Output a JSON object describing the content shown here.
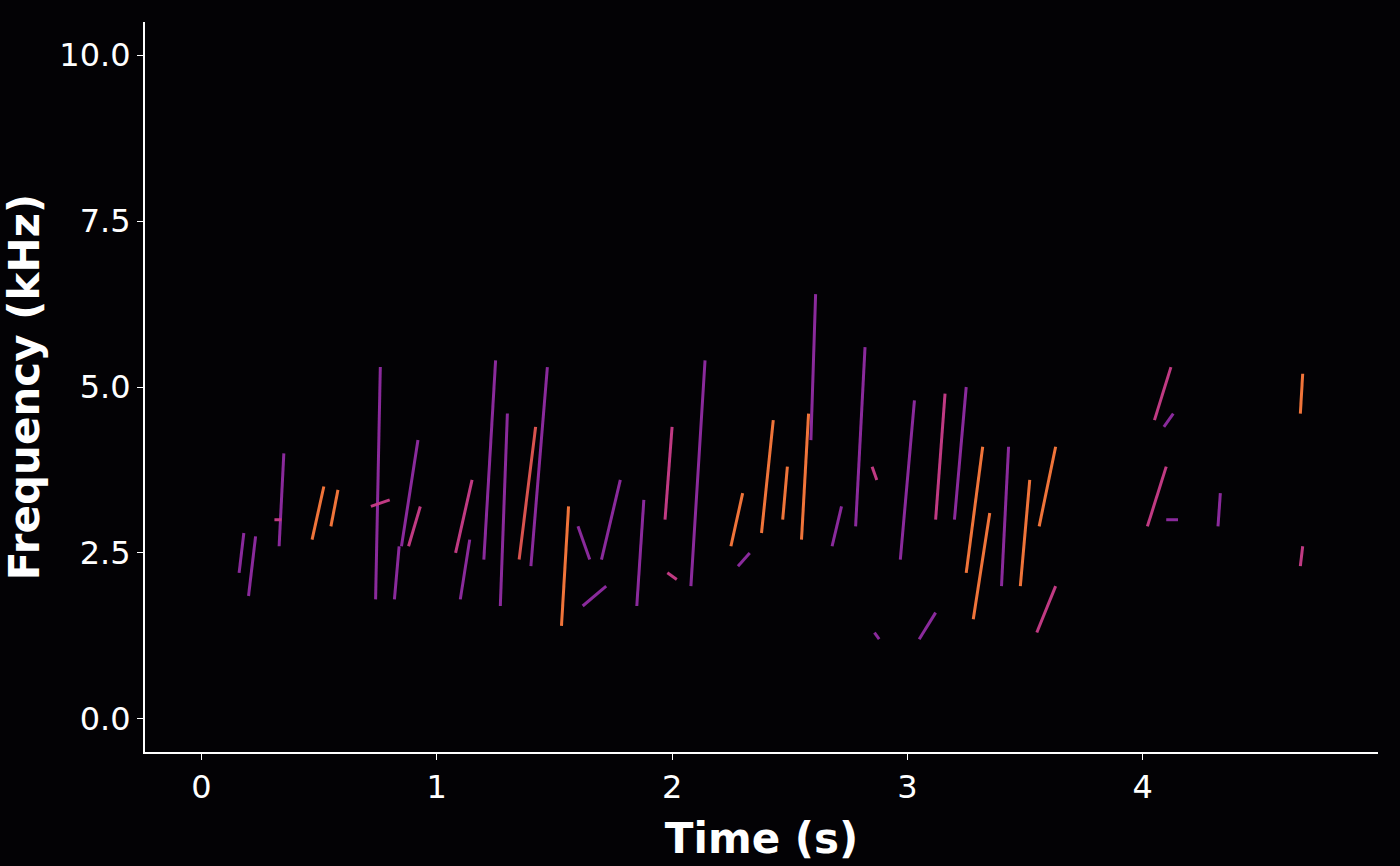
{
  "chart_data": {
    "type": "line",
    "x_label": "Time (s)",
    "y_label": "Frequency (kHz)",
    "xlim": [
      -0.24,
      5.0
    ],
    "xticks": [
      0,
      1,
      2,
      3,
      4
    ],
    "ylim": [
      -0.5,
      10.5
    ],
    "yticks": [
      {
        "value": 0,
        "label": "0.0"
      },
      {
        "value": 2.5,
        "label": "2.5"
      },
      {
        "value": 5,
        "label": "5.0"
      },
      {
        "value": 7.5,
        "label": "7.5"
      },
      {
        "value": 10,
        "label": "10.0"
      }
    ],
    "grid": false,
    "series": [
      {
        "color": "#8a2a9c",
        "x": [
          0.16,
          0.18
        ],
        "values": [
          2.2,
          2.8
        ]
      },
      {
        "color": "#8a2a9c",
        "x": [
          0.2,
          0.23
        ],
        "values": [
          1.85,
          2.75
        ]
      },
      {
        "color": "#8a2a9c",
        "x": [
          0.33,
          0.35
        ],
        "values": [
          2.6,
          4.0
        ]
      },
      {
        "color": "#c03a83",
        "x": [
          0.31,
          0.34
        ],
        "values": [
          3.0,
          3.0
        ]
      },
      {
        "color": "#f0743a",
        "x": [
          0.47,
          0.52
        ],
        "values": [
          2.7,
          3.5
        ]
      },
      {
        "color": "#f0743a",
        "x": [
          0.55,
          0.58
        ],
        "values": [
          2.9,
          3.45
        ]
      },
      {
        "color": "#8a2a9c",
        "x": [
          0.74,
          0.76
        ],
        "values": [
          1.8,
          5.3
        ]
      },
      {
        "color": "#c03a83",
        "x": [
          0.72,
          0.8
        ],
        "values": [
          3.2,
          3.3
        ]
      },
      {
        "color": "#8a2a9c",
        "x": [
          0.85,
          0.92
        ],
        "values": [
          2.6,
          4.2
        ]
      },
      {
        "color": "#c03a83",
        "x": [
          0.88,
          0.93
        ],
        "values": [
          2.6,
          3.2
        ]
      },
      {
        "color": "#8a2a9c",
        "x": [
          0.82,
          0.84
        ],
        "values": [
          1.8,
          2.6
        ]
      },
      {
        "color": "#c03a83",
        "x": [
          1.08,
          1.15
        ],
        "values": [
          2.5,
          3.6
        ]
      },
      {
        "color": "#8a2a9c",
        "x": [
          1.1,
          1.14
        ],
        "values": [
          1.8,
          2.7
        ]
      },
      {
        "color": "#8a2a9c",
        "x": [
          1.2,
          1.25
        ],
        "values": [
          2.4,
          5.4
        ]
      },
      {
        "color": "#8a2a9c",
        "x": [
          1.27,
          1.3
        ],
        "values": [
          1.7,
          4.6
        ]
      },
      {
        "color": "#d9534f",
        "x": [
          1.35,
          1.42
        ],
        "values": [
          2.4,
          4.4
        ]
      },
      {
        "color": "#8a2a9c",
        "x": [
          1.4,
          1.47
        ],
        "values": [
          2.3,
          5.3
        ]
      },
      {
        "color": "#f0743a",
        "x": [
          1.53,
          1.56
        ],
        "values": [
          1.4,
          3.2
        ]
      },
      {
        "color": "#8a2a9c",
        "x": [
          1.6,
          1.65
        ],
        "values": [
          2.9,
          2.4
        ]
      },
      {
        "color": "#8a2a9c",
        "x": [
          1.62,
          1.72
        ],
        "values": [
          1.7,
          2.0
        ]
      },
      {
        "color": "#8a2a9c",
        "x": [
          1.7,
          1.78
        ],
        "values": [
          2.4,
          3.6
        ]
      },
      {
        "color": "#8a2a9c",
        "x": [
          1.85,
          1.88
        ],
        "values": [
          1.7,
          3.3
        ]
      },
      {
        "color": "#c03a83",
        "x": [
          1.97,
          2.0
        ],
        "values": [
          3.0,
          4.4
        ]
      },
      {
        "color": "#c03a83",
        "x": [
          1.98,
          2.02
        ],
        "values": [
          2.2,
          2.1
        ]
      },
      {
        "color": "#8a2a9c",
        "x": [
          2.08,
          2.14
        ],
        "values": [
          2.0,
          5.4
        ]
      },
      {
        "color": "#f0743a",
        "x": [
          2.25,
          2.3
        ],
        "values": [
          2.6,
          3.4
        ]
      },
      {
        "color": "#8a2a9c",
        "x": [
          2.28,
          2.33
        ],
        "values": [
          2.3,
          2.5
        ]
      },
      {
        "color": "#f0743a",
        "x": [
          2.38,
          2.43
        ],
        "values": [
          2.8,
          4.5
        ]
      },
      {
        "color": "#f0743a",
        "x": [
          2.47,
          2.49
        ],
        "values": [
          3.0,
          3.8
        ]
      },
      {
        "color": "#f0743a",
        "x": [
          2.55,
          2.58
        ],
        "values": [
          2.7,
          4.6
        ]
      },
      {
        "color": "#8a2a9c",
        "x": [
          2.59,
          2.61
        ],
        "values": [
          4.2,
          6.4
        ]
      },
      {
        "color": "#8a2a9c",
        "x": [
          2.68,
          2.72
        ],
        "values": [
          2.6,
          3.2
        ]
      },
      {
        "color": "#8a2a9c",
        "x": [
          2.78,
          2.82
        ],
        "values": [
          2.9,
          5.6
        ]
      },
      {
        "color": "#c03a83",
        "x": [
          2.85,
          2.87
        ],
        "values": [
          3.8,
          3.6
        ]
      },
      {
        "color": "#8a2a9c",
        "x": [
          2.97,
          3.03
        ],
        "values": [
          2.4,
          4.8
        ]
      },
      {
        "color": "#8a2a9c",
        "x": [
          2.86,
          2.88
        ],
        "values": [
          1.3,
          1.2
        ]
      },
      {
        "color": "#8a2a9c",
        "x": [
          3.05,
          3.12
        ],
        "values": [
          1.2,
          1.6
        ]
      },
      {
        "color": "#c03a83",
        "x": [
          3.12,
          3.16
        ],
        "values": [
          3.0,
          4.9
        ]
      },
      {
        "color": "#f0743a",
        "x": [
          3.25,
          3.32
        ],
        "values": [
          2.2,
          4.1
        ]
      },
      {
        "color": "#f0743a",
        "x": [
          3.28,
          3.35
        ],
        "values": [
          1.5,
          3.1
        ]
      },
      {
        "color": "#8a2a9c",
        "x": [
          3.2,
          3.25
        ],
        "values": [
          3.0,
          5.0
        ]
      },
      {
        "color": "#8a2a9c",
        "x": [
          3.4,
          3.43
        ],
        "values": [
          2.0,
          4.1
        ]
      },
      {
        "color": "#f0743a",
        "x": [
          3.48,
          3.52
        ],
        "values": [
          2.0,
          3.6
        ]
      },
      {
        "color": "#c03a83",
        "x": [
          3.55,
          3.63
        ],
        "values": [
          1.3,
          2.0
        ]
      },
      {
        "color": "#f0743a",
        "x": [
          3.56,
          3.63
        ],
        "values": [
          2.9,
          4.1
        ]
      },
      {
        "color": "#c03a83",
        "x": [
          4.02,
          4.1
        ],
        "values": [
          2.9,
          3.8
        ]
      },
      {
        "color": "#c03a83",
        "x": [
          4.05,
          4.12
        ],
        "values": [
          4.5,
          5.3
        ]
      },
      {
        "color": "#8a2a9c",
        "x": [
          4.09,
          4.13
        ],
        "values": [
          4.4,
          4.6
        ]
      },
      {
        "color": "#8a2a9c",
        "x": [
          4.1,
          4.15
        ],
        "values": [
          3.0,
          3.0
        ]
      },
      {
        "color": "#8a2a9c",
        "x": [
          4.32,
          4.33
        ],
        "values": [
          2.9,
          3.4
        ]
      },
      {
        "color": "#f0743a",
        "x": [
          4.67,
          4.68
        ],
        "values": [
          4.6,
          5.2
        ]
      },
      {
        "color": "#c03a83",
        "x": [
          4.67,
          4.68
        ],
        "values": [
          2.3,
          2.6
        ]
      }
    ]
  }
}
